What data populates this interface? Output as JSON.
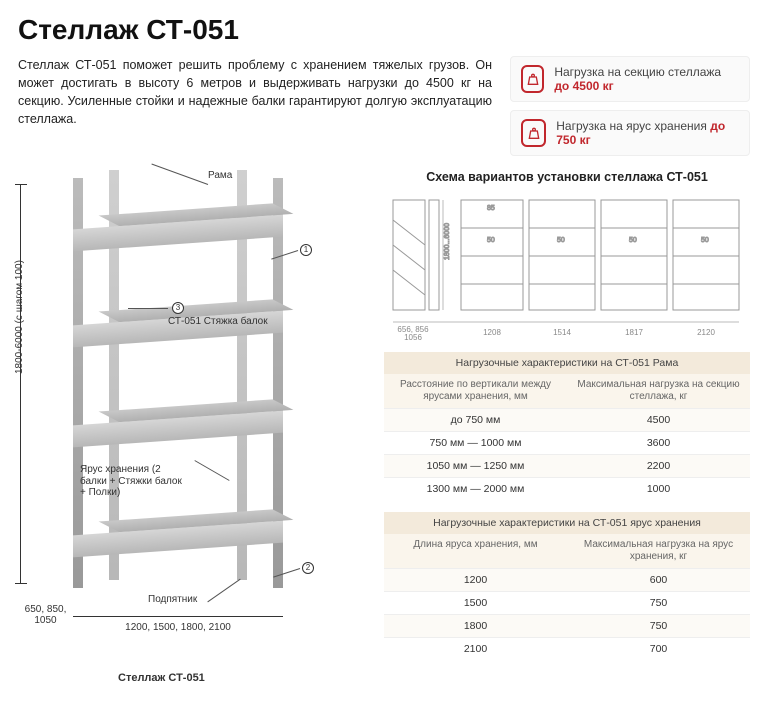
{
  "title": "Стеллаж СТ-051",
  "description": "Стеллаж СТ-051 поможет решить проблему с хранением тяжелых грузов. Он может достигать в высоту 6 метров и выдерживать нагрузки до 4500 кг на секцию. Усиленные стойки и надежные балки гарантируют долгую эксплуатацию стеллажа.",
  "load_boxes": {
    "section": {
      "label": "Нагрузка на секцию стеллажа ",
      "value": "до 4500 кг"
    },
    "tier": {
      "label": "Нагрузка на ярус хранения ",
      "value": "до 750 кг"
    }
  },
  "figure": {
    "height_label": "1800-6000 (с шагом 100)",
    "depth_label": "650, 850, 1050",
    "width_label": "1200, 1500, 1800, 2100",
    "caption": "Стеллаж СТ-051",
    "callouts": {
      "frame": "Рама",
      "beam": "СТ-051 Стяжка балок",
      "tier": "Ярус хранения (2 балки + Стяжки балок + Полки)",
      "footer": "Подпятник",
      "n1": "1",
      "n2": "2",
      "n3": "3"
    }
  },
  "scheme": {
    "title": "Схема вариантов установки стеллажа СТ-051",
    "vlabel": "1800...6000",
    "top_dim": "85",
    "gap_dim": "50",
    "bottom": {
      "c0a": "656, 856",
      "c0b": "1056",
      "c1": "1208",
      "c2": "1514",
      "c3": "1817",
      "c4": "2120"
    }
  },
  "table1": {
    "title": "Нагрузочные характеристики на СТ-051 Рама",
    "head1": "Расстояние по вертикали между ярусами хранения, мм",
    "head2": "Максимальная нагрузка на секцию стеллажа, кг",
    "rows": [
      [
        "до 750 мм",
        "4500"
      ],
      [
        "750 мм — 1000 мм",
        "3600"
      ],
      [
        "1050 мм — 1250 мм",
        "2200"
      ],
      [
        "1300 мм — 2000 мм",
        "1000"
      ]
    ]
  },
  "table2": {
    "title": "Нагрузочные характеристики на СТ-051 ярус хранения",
    "head1": "Длина яруса хранения, мм",
    "head2": "Максимальная нагрузка на ярус хранения, кг",
    "rows": [
      [
        "1200",
        "600"
      ],
      [
        "1500",
        "750"
      ],
      [
        "1800",
        "750"
      ],
      [
        "2100",
        "700"
      ]
    ]
  },
  "colors": {
    "accent": "#c1272d",
    "table_header_bg": "#f3eadb",
    "table_subhead_bg": "#faf5ec"
  }
}
